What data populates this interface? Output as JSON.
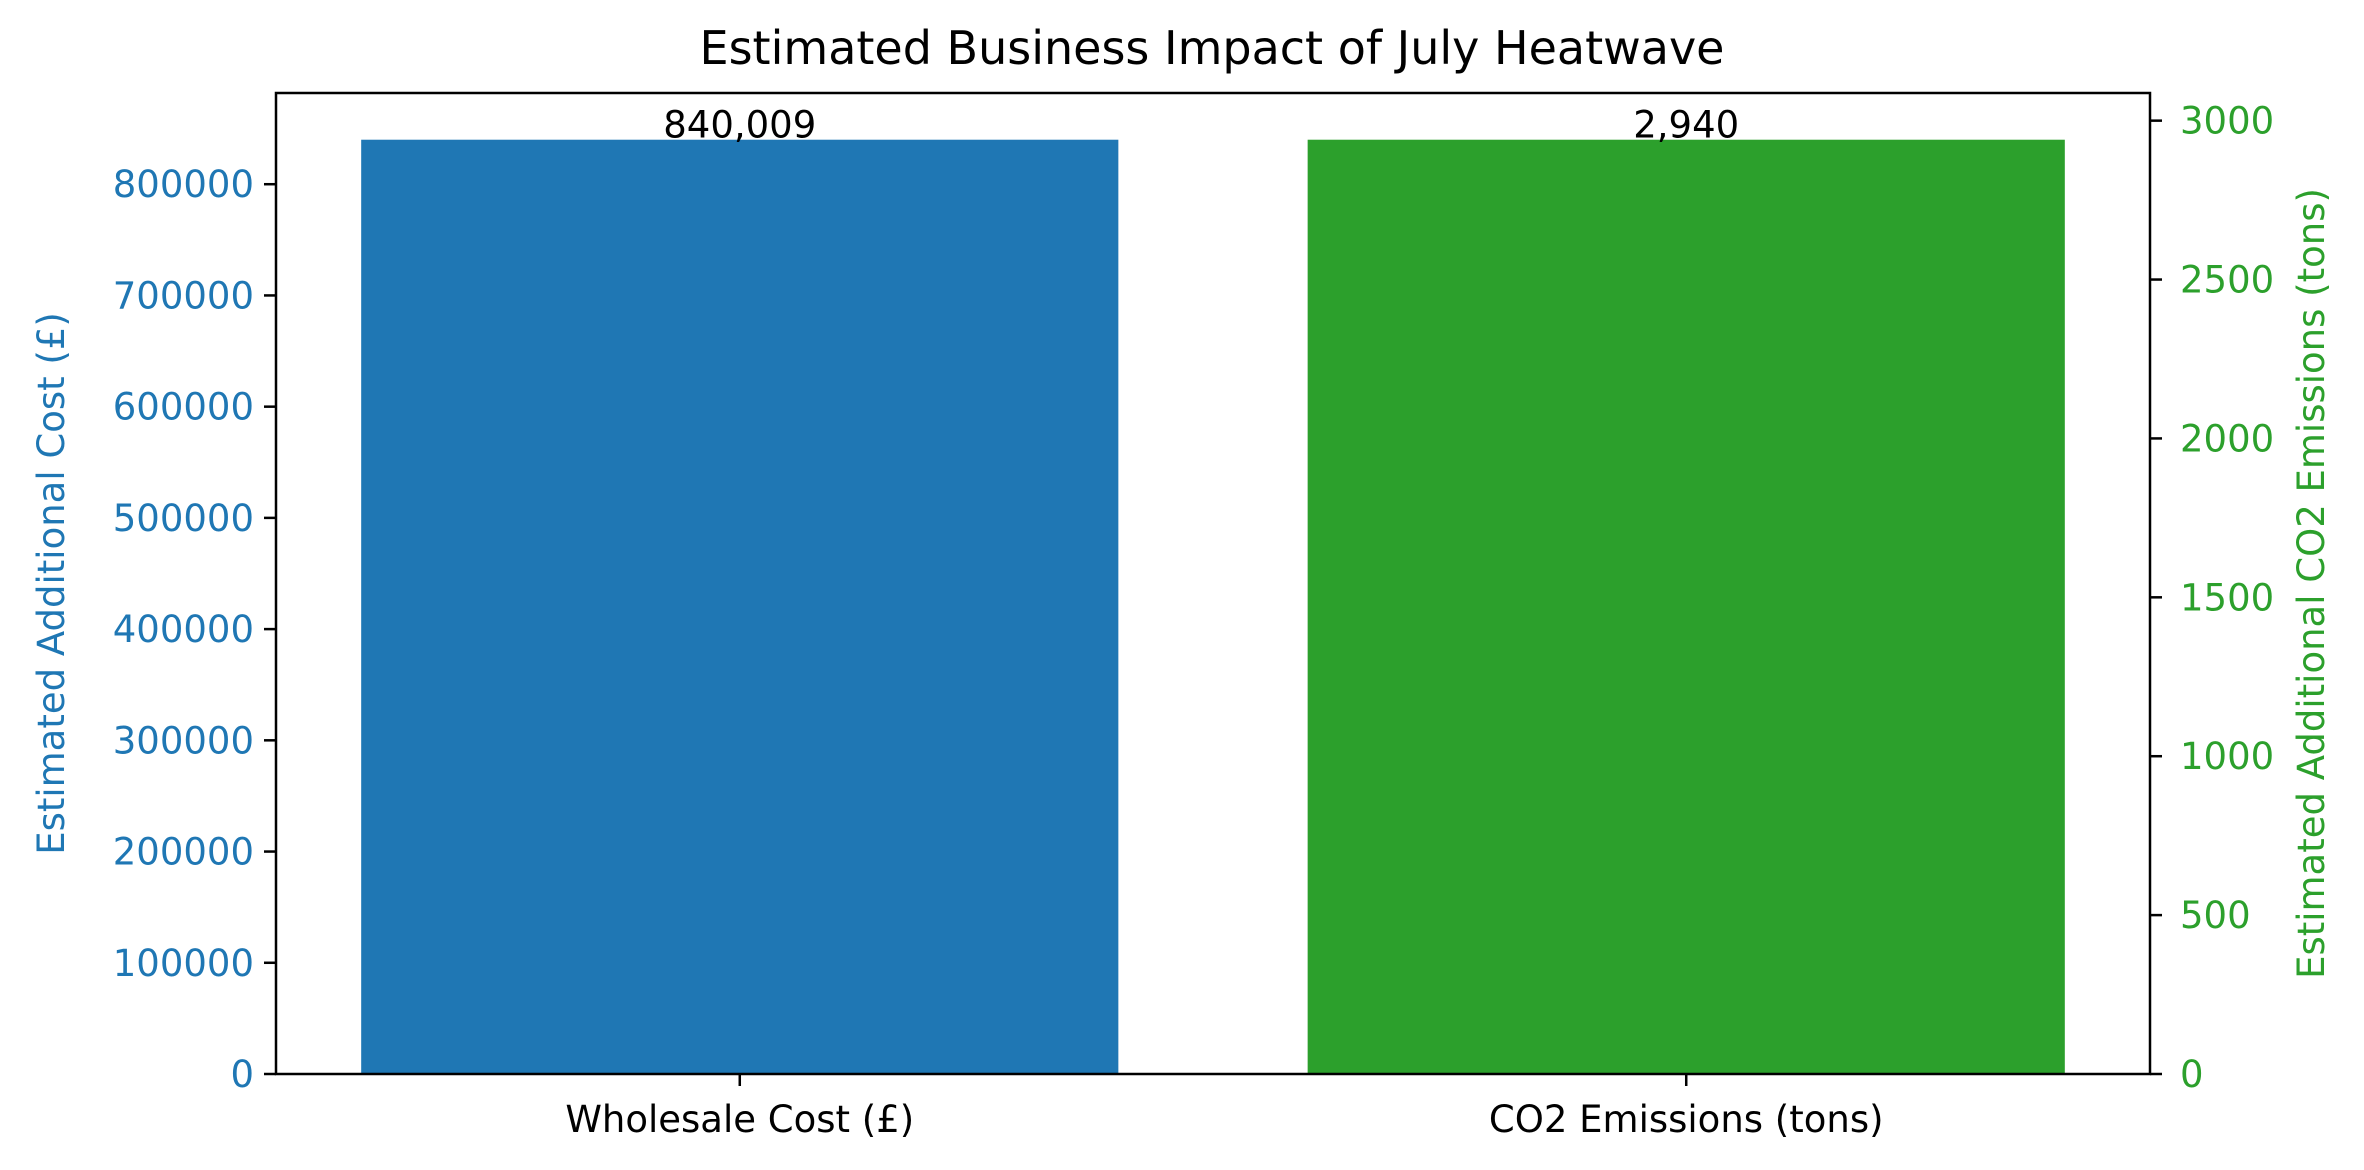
{
  "chart_data": {
    "type": "bar",
    "title": "Estimated Business Impact of July Heatwave",
    "categories": [
      "Wholesale Cost (£)",
      "CO2 Emissions (tons)"
    ],
    "bars": [
      {
        "category": "Wholesale Cost (£)",
        "value": 840009,
        "label": "840,009",
        "axis": "left",
        "color": "#1f77b4"
      },
      {
        "category": "CO2 Emissions (tons)",
        "value": 2940,
        "label": "2,940",
        "axis": "right",
        "color": "#2ca02c"
      }
    ],
    "y_left": {
      "label": "Estimated Additional Cost (£)",
      "color": "#1f77b4",
      "ylim": [
        0,
        882009
      ],
      "ticks": [
        0,
        100000,
        200000,
        300000,
        400000,
        500000,
        600000,
        700000,
        800000
      ],
      "tick_labels": [
        "0",
        "100000",
        "200000",
        "300000",
        "400000",
        "500000",
        "600000",
        "700000",
        "800000"
      ]
    },
    "y_right": {
      "label": "Estimated Additional CO2 Emissions (tons)",
      "color": "#2ca02c",
      "ylim": [
        0,
        3087
      ],
      "ticks": [
        0,
        500,
        1000,
        1500,
        2000,
        2500,
        3000
      ],
      "tick_labels": [
        "0",
        "500",
        "1000",
        "1500",
        "2000",
        "2500",
        "3000"
      ]
    },
    "grid": false,
    "legend": "none"
  }
}
